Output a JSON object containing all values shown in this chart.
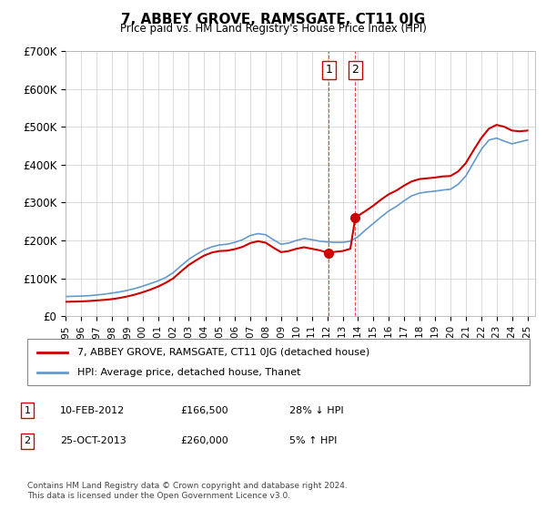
{
  "title": "7, ABBEY GROVE, RAMSGATE, CT11 0JG",
  "subtitle": "Price paid vs. HM Land Registry's House Price Index (HPI)",
  "ylabel": "",
  "ylim": [
    0,
    700000
  ],
  "yticks": [
    0,
    100000,
    200000,
    300000,
    400000,
    500000,
    600000,
    700000
  ],
  "ytick_labels": [
    "£0",
    "£100K",
    "£200K",
    "£300K",
    "£400K",
    "£500K",
    "£600K",
    "£700K"
  ],
  "xlim_start": 1995.0,
  "xlim_end": 2025.5,
  "hpi_color": "#6699cc",
  "price_color": "#cc0000",
  "transaction_color": "#cc0000",
  "vline_color": "#cc0000",
  "legend_label_red": "7, ABBEY GROVE, RAMSGATE, CT11 0JG (detached house)",
  "legend_label_blue": "HPI: Average price, detached house, Thanet",
  "transactions": [
    {
      "num": 1,
      "date": "10-FEB-2012",
      "price": "£166,500",
      "hpi": "28% ↓ HPI",
      "year": 2012.1
    },
    {
      "num": 2,
      "date": "25-OCT-2013",
      "price": "£260,000",
      "hpi": "5% ↑ HPI",
      "year": 2013.82
    }
  ],
  "footer": "Contains HM Land Registry data © Crown copyright and database right 2024.\nThis data is licensed under the Open Government Licence v3.0.",
  "hpi_data": [
    [
      1995.0,
      52000
    ],
    [
      1995.5,
      52500
    ],
    [
      1996.0,
      53000
    ],
    [
      1996.5,
      54000
    ],
    [
      1997.0,
      56000
    ],
    [
      1997.5,
      58000
    ],
    [
      1998.0,
      61000
    ],
    [
      1998.5,
      64000
    ],
    [
      1999.0,
      68000
    ],
    [
      1999.5,
      73000
    ],
    [
      2000.0,
      79000
    ],
    [
      2000.5,
      86000
    ],
    [
      2001.0,
      93000
    ],
    [
      2001.5,
      102000
    ],
    [
      2002.0,
      115000
    ],
    [
      2002.5,
      133000
    ],
    [
      2003.0,
      150000
    ],
    [
      2003.5,
      163000
    ],
    [
      2004.0,
      175000
    ],
    [
      2004.5,
      183000
    ],
    [
      2005.0,
      188000
    ],
    [
      2005.5,
      190000
    ],
    [
      2006.0,
      195000
    ],
    [
      2006.5,
      202000
    ],
    [
      2007.0,
      213000
    ],
    [
      2007.5,
      218000
    ],
    [
      2008.0,
      215000
    ],
    [
      2008.5,
      202000
    ],
    [
      2009.0,
      190000
    ],
    [
      2009.5,
      193000
    ],
    [
      2010.0,
      200000
    ],
    [
      2010.5,
      205000
    ],
    [
      2011.0,
      202000
    ],
    [
      2011.5,
      198000
    ],
    [
      2012.0,
      196000
    ],
    [
      2012.5,
      195000
    ],
    [
      2013.0,
      195000
    ],
    [
      2013.5,
      198000
    ],
    [
      2014.0,
      210000
    ],
    [
      2014.5,
      228000
    ],
    [
      2015.0,
      245000
    ],
    [
      2015.5,
      262000
    ],
    [
      2016.0,
      278000
    ],
    [
      2016.5,
      290000
    ],
    [
      2017.0,
      305000
    ],
    [
      2017.5,
      318000
    ],
    [
      2018.0,
      325000
    ],
    [
      2018.5,
      328000
    ],
    [
      2019.0,
      330000
    ],
    [
      2019.5,
      333000
    ],
    [
      2020.0,
      335000
    ],
    [
      2020.5,
      348000
    ],
    [
      2021.0,
      370000
    ],
    [
      2021.5,
      405000
    ],
    [
      2022.0,
      440000
    ],
    [
      2022.5,
      465000
    ],
    [
      2023.0,
      470000
    ],
    [
      2023.5,
      462000
    ],
    [
      2024.0,
      455000
    ],
    [
      2024.5,
      460000
    ],
    [
      2025.0,
      465000
    ]
  ],
  "red_data": [
    [
      1995.0,
      38000
    ],
    [
      1995.5,
      38500
    ],
    [
      1996.0,
      39000
    ],
    [
      1996.5,
      40000
    ],
    [
      1997.0,
      41500
    ],
    [
      1997.5,
      43000
    ],
    [
      1998.0,
      45000
    ],
    [
      1998.5,
      48000
    ],
    [
      1999.0,
      52000
    ],
    [
      1999.5,
      57000
    ],
    [
      2000.0,
      63000
    ],
    [
      2000.5,
      70000
    ],
    [
      2001.0,
      78000
    ],
    [
      2001.5,
      88000
    ],
    [
      2002.0,
      100000
    ],
    [
      2002.5,
      118000
    ],
    [
      2003.0,
      135000
    ],
    [
      2003.5,
      148000
    ],
    [
      2004.0,
      160000
    ],
    [
      2004.5,
      168000
    ],
    [
      2005.0,
      172000
    ],
    [
      2005.5,
      173000
    ],
    [
      2006.0,
      177000
    ],
    [
      2006.5,
      183000
    ],
    [
      2007.0,
      193000
    ],
    [
      2007.5,
      198000
    ],
    [
      2008.0,
      194000
    ],
    [
      2008.5,
      181000
    ],
    [
      2009.0,
      169000
    ],
    [
      2009.5,
      172000
    ],
    [
      2010.0,
      178000
    ],
    [
      2010.5,
      182000
    ],
    [
      2011.0,
      178000
    ],
    [
      2011.5,
      174000
    ],
    [
      2012.0,
      168000
    ],
    [
      2012.1,
      166500
    ],
    [
      2012.5,
      170000
    ],
    [
      2013.0,
      172000
    ],
    [
      2013.5,
      178000
    ],
    [
      2013.82,
      260000
    ],
    [
      2014.0,
      265000
    ],
    [
      2014.5,
      278000
    ],
    [
      2015.0,
      292000
    ],
    [
      2015.5,
      308000
    ],
    [
      2016.0,
      322000
    ],
    [
      2016.5,
      332000
    ],
    [
      2017.0,
      345000
    ],
    [
      2017.5,
      356000
    ],
    [
      2018.0,
      362000
    ],
    [
      2018.5,
      364000
    ],
    [
      2019.0,
      366000
    ],
    [
      2019.5,
      369000
    ],
    [
      2020.0,
      370000
    ],
    [
      2020.5,
      382000
    ],
    [
      2021.0,
      404000
    ],
    [
      2021.5,
      438000
    ],
    [
      2022.0,
      470000
    ],
    [
      2022.5,
      495000
    ],
    [
      2023.0,
      505000
    ],
    [
      2023.5,
      500000
    ],
    [
      2024.0,
      490000
    ],
    [
      2024.5,
      488000
    ],
    [
      2025.0,
      490000
    ]
  ]
}
